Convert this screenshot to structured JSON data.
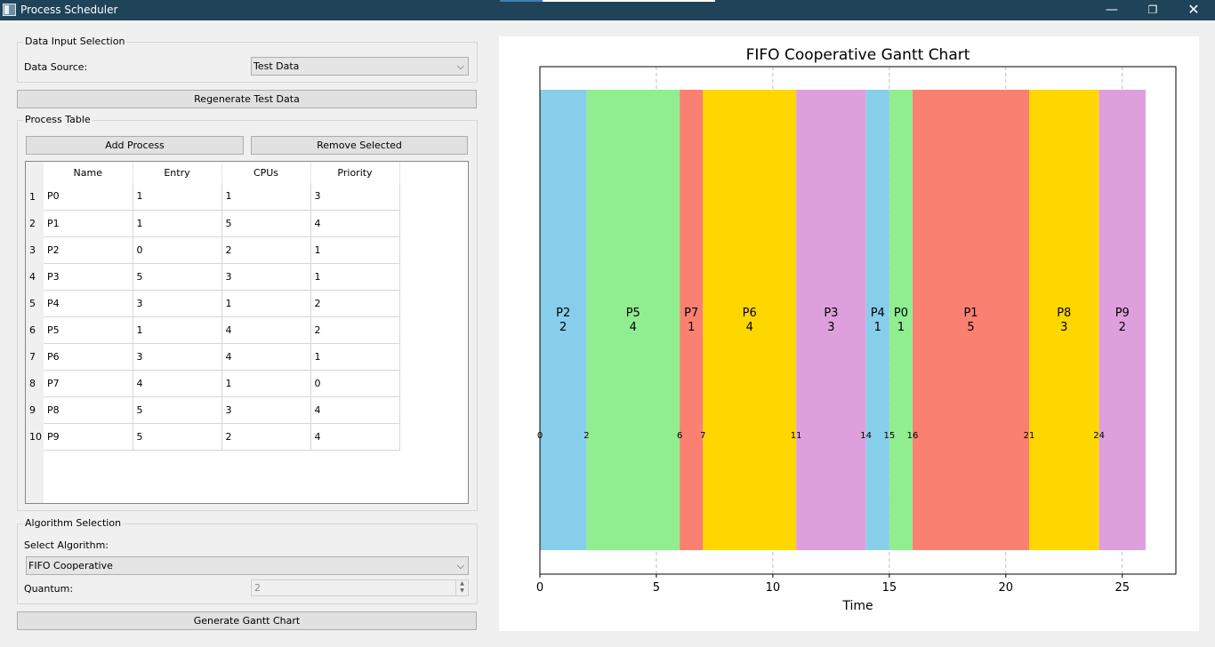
{
  "window": {
    "title": "Process Scheduler",
    "minimize_glyph": "—",
    "maximize_glyph": "❐",
    "close_glyph": "✕"
  },
  "data_input": {
    "group_title": "Data Input Selection",
    "source_label": "Data Source:",
    "source_value": "Test Data",
    "regenerate_label": "Regenerate Test Data"
  },
  "process_table": {
    "group_title": "Process Table",
    "add_label": "Add Process",
    "remove_label": "Remove Selected",
    "columns": [
      "Name",
      "Entry",
      "CPUs",
      "Priority"
    ],
    "rows": [
      [
        "P0",
        "1",
        "1",
        "3"
      ],
      [
        "P1",
        "1",
        "5",
        "4"
      ],
      [
        "P2",
        "0",
        "2",
        "1"
      ],
      [
        "P3",
        "5",
        "3",
        "1"
      ],
      [
        "P4",
        "3",
        "1",
        "2"
      ],
      [
        "P5",
        "1",
        "4",
        "2"
      ],
      [
        "P6",
        "3",
        "4",
        "1"
      ],
      [
        "P7",
        "4",
        "1",
        "0"
      ],
      [
        "P8",
        "5",
        "3",
        "4"
      ],
      [
        "P9",
        "5",
        "2",
        "4"
      ]
    ],
    "row_numbers": [
      "1",
      "2",
      "3",
      "4",
      "5",
      "6",
      "7",
      "8",
      "9",
      "10"
    ]
  },
  "algorithm": {
    "group_title": "Algorithm Selection",
    "select_label": "Select Algorithm:",
    "selected": "FIFO Cooperative",
    "quantum_label": "Quantum:",
    "quantum_value": "2",
    "generate_label": "Generate Gantt Chart"
  },
  "chart_data": {
    "type": "gantt",
    "title": "FIFO Cooperative Gantt Chart",
    "xlabel": "Time",
    "xlim": [
      0,
      27.3
    ],
    "x_ticks": [
      0,
      5,
      10,
      15,
      20,
      25
    ],
    "grid": "vertical dashed",
    "segments": [
      {
        "name": "P2",
        "start": 0,
        "end": 2,
        "duration": "2",
        "color": "#87ceeb"
      },
      {
        "name": "P5",
        "start": 2,
        "end": 6,
        "duration": "4",
        "color": "#90ee90"
      },
      {
        "name": "P7",
        "start": 6,
        "end": 7,
        "duration": "1",
        "color": "#fa8072"
      },
      {
        "name": "P6",
        "start": 7,
        "end": 11,
        "duration": "4",
        "color": "#ffd700"
      },
      {
        "name": "P3",
        "start": 11,
        "end": 14,
        "duration": "3",
        "color": "#dda0dd"
      },
      {
        "name": "P4",
        "start": 14,
        "end": 15,
        "duration": "1",
        "color": "#87ceeb"
      },
      {
        "name": "P0",
        "start": 15,
        "end": 16,
        "duration": "1",
        "color": "#90ee90"
      },
      {
        "name": "P1",
        "start": 16,
        "end": 21,
        "duration": "5",
        "color": "#fa8072"
      },
      {
        "name": "P8",
        "start": 21,
        "end": 24,
        "duration": "3",
        "color": "#ffd700"
      },
      {
        "name": "P9",
        "start": 24,
        "end": 26,
        "duration": "2",
        "color": "#dda0dd"
      }
    ],
    "boundary_labels": [
      "0",
      "2",
      "6",
      "7",
      "11",
      "14",
      "15",
      "16",
      "21",
      "24"
    ]
  }
}
